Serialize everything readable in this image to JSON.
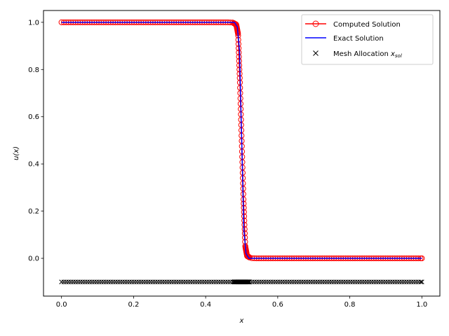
{
  "chart_data": {
    "type": "line",
    "title": "",
    "xlabel": "x",
    "ylabel": "u(x)",
    "xlim": [
      -0.05,
      1.05
    ],
    "ylim": [
      -0.16,
      1.05
    ],
    "xticks": [
      0.0,
      0.2,
      0.4,
      0.6,
      0.8,
      1.0
    ],
    "xtick_labels": [
      "0.0",
      "0.2",
      "0.4",
      "0.6",
      "0.8",
      "1.0"
    ],
    "yticks": [
      0.0,
      0.2,
      0.4,
      0.6,
      0.8,
      1.0
    ],
    "ytick_labels": [
      "0.0",
      "0.2",
      "0.4",
      "0.6",
      "0.8",
      "1.0"
    ],
    "grid": false,
    "legend_position": "top-right",
    "mesh_y": -0.1,
    "series": [
      {
        "name": "Computed Solution",
        "style": "line-circle",
        "color": "#ff0000",
        "x": [
          0.0,
          0.46,
          0.475,
          0.485,
          0.49,
          0.495,
          0.5,
          0.505,
          0.51,
          0.515,
          0.525,
          0.54,
          1.0
        ],
        "y": [
          1.0,
          1.0,
          0.999,
          0.99,
          0.95,
          0.75,
          0.5,
          0.25,
          0.05,
          0.01,
          0.001,
          0.0,
          0.0
        ]
      },
      {
        "name": "Exact Solution",
        "style": "line",
        "color": "#0000ff",
        "x": [
          0.0,
          0.48,
          0.488,
          0.494,
          0.5,
          0.506,
          0.512,
          0.52,
          1.0
        ],
        "y": [
          1.0,
          1.0,
          0.98,
          0.88,
          0.5,
          0.12,
          0.02,
          0.0,
          0.0
        ]
      },
      {
        "name": "Mesh Allocation",
        "name_subscript": "sol",
        "style": "marker-x",
        "color": "#000000"
      }
    ]
  }
}
